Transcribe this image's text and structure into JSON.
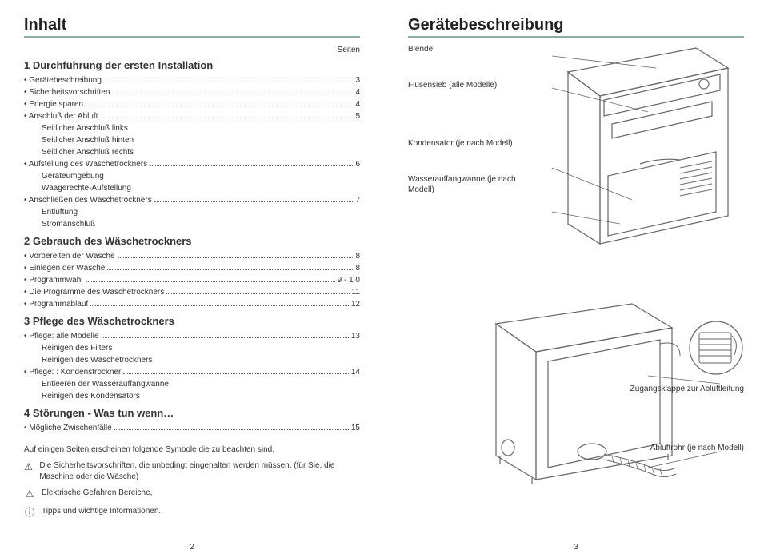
{
  "left": {
    "title": "Inhalt",
    "seiten": "Seiten",
    "sections": [
      {
        "heading": "1 Durchführung der ersten Installation",
        "items": [
          {
            "label": "Gerätebeschreibung",
            "page": "3",
            "bullet": true,
            "subs": []
          },
          {
            "label": "Sicherheitsvorschriften",
            "page": "4",
            "bullet": true,
            "subs": []
          },
          {
            "label": "Energie sparen",
            "page": "4",
            "bullet": true,
            "subs": []
          },
          {
            "label": "Anschluß der Abluft",
            "page": "5",
            "bullet": true,
            "subs": [
              "Seitlicher Anschluß links",
              "Seitlicher Anschluß hinten",
              "Seitlicher Anschluß rechts"
            ]
          },
          {
            "label": "Aufstellung des Wäschetrockners",
            "page": "6",
            "bullet": true,
            "subs": [
              "Geräteumgebung",
              "Waagerechte-Aufstellung"
            ]
          },
          {
            "label": "Anschließen des Wäschetrockners",
            "page": "7",
            "bullet": true,
            "subs": [
              "Entlüftung",
              "Stromanschluß"
            ]
          }
        ]
      },
      {
        "heading": "2 Gebrauch des Wäschetrockners",
        "items": [
          {
            "label": "Vorbereiten der Wäsche",
            "page": "8",
            "bullet": true,
            "subs": []
          },
          {
            "label": "Einlegen der Wäsche",
            "page": "8",
            "bullet": true,
            "subs": []
          },
          {
            "label": "Programmwahl",
            "page": "9 - 1 0",
            "bullet": true,
            "subs": []
          },
          {
            "label": "Die Programme des Wäschetrockners",
            "page": "11",
            "bullet": true,
            "subs": []
          },
          {
            "label": "Programmablauf",
            "page": "12",
            "bullet": true,
            "subs": []
          }
        ]
      },
      {
        "heading": "3 Pflege des Wäschetrockners",
        "items": [
          {
            "label": "Pflege: alle Modelle",
            "page": "13",
            "bullet": true,
            "subs": [
              "Reinigen des Filters",
              "Reinigen des Wäschetrockners"
            ]
          },
          {
            "label": "Pflege: : Kondenstrockner",
            "page": "14",
            "bullet": true,
            "subs": [
              "Entleeren der Wasserauffangwanne",
              "Reinigen des Kondensators"
            ]
          }
        ]
      },
      {
        "heading": "4 Störungen - Was tun wenn…",
        "items": [
          {
            "label": "Mögliche Zwischenfälle",
            "page": "15",
            "bullet": true,
            "subs": []
          }
        ]
      }
    ],
    "note_intro": "Auf einigen Seiten erscheinen folgende Symbole die zu beachten sind.",
    "symbols": [
      {
        "icon": "⚠",
        "text": "Die Sicherheitsvorschriften, die unbedingt eingehalten werden müssen, (für Sie, die Maschine oder die Wäsche)"
      },
      {
        "icon": "⚠",
        "text": "Elektrische Gefahren Bereiche,"
      },
      {
        "icon": "ⓘ",
        "text": "Tipps und wichtige Informationen."
      }
    ],
    "page_num": "2"
  },
  "right": {
    "title": "Gerätebeschreibung",
    "labels_left": [
      "Blende",
      "Flusensieb (alle Modelle)",
      "Kondensator (je nach Modell)",
      "Wasserauffangwanne (je nach Modell)"
    ],
    "label_right_1": "Zugangsklappe zur Abluftleitung",
    "label_right_2": "Abluftrohr (je nach Modell)",
    "page_num": "3"
  },
  "colors": {
    "rule": "#8fb0b0",
    "text": "#333333",
    "stroke": "#666666"
  }
}
